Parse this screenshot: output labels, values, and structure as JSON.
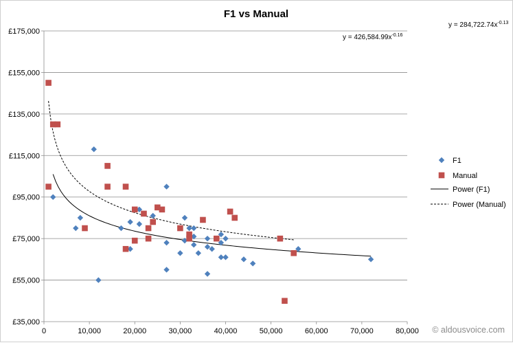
{
  "chart_data": {
    "type": "scatter",
    "title": "F1 vs Manual",
    "xlabel": "",
    "ylabel": "",
    "xlim": [
      0,
      80000
    ],
    "ylim": [
      35000,
      175000
    ],
    "x_ticks": [
      0,
      10000,
      20000,
      30000,
      40000,
      50000,
      60000,
      70000,
      80000
    ],
    "x_tick_labels": [
      "0",
      "10,000",
      "20,000",
      "30,000",
      "40,000",
      "50,000",
      "60,000",
      "70,000",
      "80,000"
    ],
    "y_ticks": [
      35000,
      55000,
      75000,
      95000,
      115000,
      135000,
      155000,
      175000
    ],
    "y_tick_labels": [
      "£35,000",
      "£55,000",
      "£75,000",
      "£95,000",
      "£115,000",
      "£135,000",
      "£155,000",
      "£175,000"
    ],
    "grid": "horizontal",
    "legend_position": "right",
    "series": [
      {
        "name": "F1",
        "marker": "diamond",
        "color": "#4f81bd",
        "points": [
          [
            2000,
            95000
          ],
          [
            7000,
            80000
          ],
          [
            8000,
            85000
          ],
          [
            11000,
            118000
          ],
          [
            12000,
            55000
          ],
          [
            17000,
            80000
          ],
          [
            19000,
            83000
          ],
          [
            19000,
            70000
          ],
          [
            21000,
            89000
          ],
          [
            21000,
            82000
          ],
          [
            24000,
            86000
          ],
          [
            27000,
            100000
          ],
          [
            27000,
            73000
          ],
          [
            27000,
            60000
          ],
          [
            30000,
            68000
          ],
          [
            31000,
            85000
          ],
          [
            31000,
            74000
          ],
          [
            32000,
            80000
          ],
          [
            33000,
            80000
          ],
          [
            33000,
            72000
          ],
          [
            33000,
            76000
          ],
          [
            34000,
            68000
          ],
          [
            36000,
            75000
          ],
          [
            36000,
            71000
          ],
          [
            36000,
            58000
          ],
          [
            37000,
            70000
          ],
          [
            39000,
            77000
          ],
          [
            39000,
            73000
          ],
          [
            39000,
            66000
          ],
          [
            40000,
            75000
          ],
          [
            40000,
            66000
          ],
          [
            44000,
            65000
          ],
          [
            46000,
            63000
          ],
          [
            56000,
            70000
          ],
          [
            72000,
            65000
          ]
        ]
      },
      {
        "name": "Manual",
        "marker": "square",
        "color": "#c0504d",
        "points": [
          [
            1000,
            150000
          ],
          [
            1000,
            100000
          ],
          [
            2000,
            130000
          ],
          [
            3000,
            130000
          ],
          [
            9000,
            80000
          ],
          [
            14000,
            110000
          ],
          [
            14000,
            100000
          ],
          [
            18000,
            100000
          ],
          [
            18000,
            70000
          ],
          [
            20000,
            89000
          ],
          [
            20000,
            74000
          ],
          [
            22000,
            87000
          ],
          [
            23000,
            80000
          ],
          [
            23000,
            75000
          ],
          [
            24000,
            83000
          ],
          [
            25000,
            90000
          ],
          [
            26000,
            89000
          ],
          [
            30000,
            80000
          ],
          [
            32000,
            77000
          ],
          [
            32000,
            75000
          ],
          [
            35000,
            84000
          ],
          [
            38000,
            75000
          ],
          [
            41000,
            88000
          ],
          [
            42000,
            85000
          ],
          [
            52000,
            75000
          ],
          [
            53000,
            45000
          ],
          [
            55000,
            68000
          ]
        ]
      }
    ],
    "trendlines": [
      {
        "name": "Power (F1)",
        "style": "solid",
        "color": "#000000",
        "coefficient": 284722.74,
        "exponent": -0.13,
        "x_range": [
          2000,
          72000
        ],
        "equation_label": "y = 284,722.74x",
        "equation_exponent": "-0.13"
      },
      {
        "name": "Power (Manual)",
        "style": "dashed",
        "color": "#000000",
        "coefficient": 426584.99,
        "exponent": -0.16,
        "x_range": [
          1000,
          55000
        ],
        "equation_label": "y = 426,584.99x",
        "equation_exponent": "-0.16"
      }
    ],
    "watermark": "© aldousvoice.com"
  }
}
